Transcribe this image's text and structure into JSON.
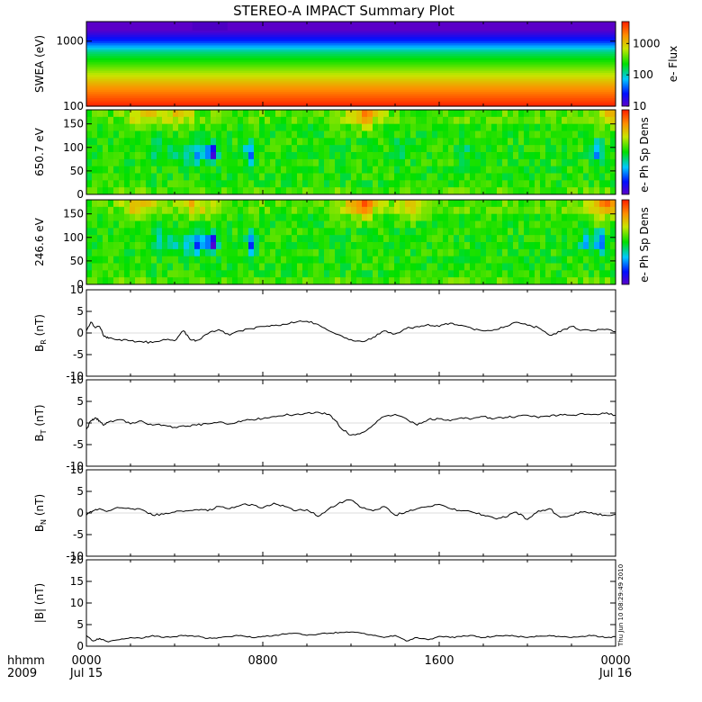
{
  "title": "STEREO-A IMPACT Summary Plot",
  "timestamp_label": "Thu Jun 10 08:29:49 2010",
  "x_axis": {
    "row1_label": "hhmm",
    "row2_label": "2009",
    "ticks": [
      {
        "hours": 0,
        "line1": "0000",
        "line2": "Jul 15"
      },
      {
        "hours": 8,
        "line1": "0800",
        "line2": ""
      },
      {
        "hours": 16,
        "line1": "1600",
        "line2": ""
      },
      {
        "hours": 24,
        "line1": "0000",
        "line2": "Jul 16"
      }
    ],
    "range_hours": [
      0,
      24
    ]
  },
  "colors": {
    "line": "#000000",
    "axis": "#000000",
    "background": "#ffffff"
  },
  "chart_data": [
    {
      "type": "heatmap",
      "name": "swea",
      "ylabel": "SWEA (eV)",
      "yscale": "log",
      "ylim": [
        100,
        2000
      ],
      "yticks": [
        100,
        1000
      ],
      "yticklabels": [
        "100",
        "1000"
      ],
      "colorbar": {
        "label": "e- Flux",
        "scale": "log",
        "range": [
          10,
          5000
        ],
        "ticks": [
          10,
          100,
          1000
        ],
        "ticklabels": [
          "10",
          "100",
          "1000"
        ]
      },
      "energy_profile": {
        "energy_ev": [
          100,
          200,
          400,
          700,
          1000,
          1500,
          2000
        ],
        "log_flux": [
          3.7,
          3.2,
          2.6,
          2.1,
          1.5,
          1.0,
          0.6
        ]
      }
    },
    {
      "type": "heatmap",
      "name": "pad650",
      "ylabel": "650.7 eV",
      "ylim": [
        0,
        180
      ],
      "yticks": [
        0,
        50,
        100,
        150
      ],
      "yticklabels": [
        "0",
        "50",
        "100",
        "150"
      ],
      "colorbar": {
        "label": "e- Ph Sp Dens"
      },
      "blue_spots": [
        {
          "t_hours": 5.7,
          "pitch_deg": 88,
          "strength": 0.95
        },
        {
          "t_hours": 5.1,
          "pitch_deg": 88,
          "strength": 0.55
        },
        {
          "t_hours": 4.6,
          "pitch_deg": 88,
          "strength": 0.4
        },
        {
          "t_hours": 3.9,
          "pitch_deg": 90,
          "strength": 0.35
        },
        {
          "t_hours": 3.2,
          "pitch_deg": 90,
          "strength": 0.3
        },
        {
          "t_hours": 7.4,
          "pitch_deg": 88,
          "strength": 0.6
        },
        {
          "t_hours": 17.1,
          "pitch_deg": 90,
          "strength": 0.25
        },
        {
          "t_hours": 23.2,
          "pitch_deg": 90,
          "strength": 0.6
        },
        {
          "t_hours": 14.2,
          "pitch_deg": 90,
          "strength": 0.2
        }
      ],
      "hot_regions": [
        {
          "t_hours": 2.6,
          "strength": 0.5
        },
        {
          "t_hours": 4.2,
          "strength": 0.4
        },
        {
          "t_hours": 12.6,
          "strength": 0.75
        },
        {
          "t_hours": 23.8,
          "strength": 0.6
        }
      ]
    },
    {
      "type": "heatmap",
      "name": "pad246",
      "ylabel": "246.6 eV",
      "ylim": [
        0,
        180
      ],
      "yticks": [
        0,
        50,
        100,
        150
      ],
      "yticklabels": [
        "0",
        "50",
        "100",
        "150"
      ],
      "colorbar": {
        "label": "e- Ph Sp Dens"
      },
      "blue_spots": [
        {
          "t_hours": 5.7,
          "pitch_deg": 88,
          "strength": 1.0
        },
        {
          "t_hours": 5.1,
          "pitch_deg": 88,
          "strength": 0.75
        },
        {
          "t_hours": 4.6,
          "pitch_deg": 88,
          "strength": 0.5
        },
        {
          "t_hours": 3.9,
          "pitch_deg": 88,
          "strength": 0.45
        },
        {
          "t_hours": 3.3,
          "pitch_deg": 88,
          "strength": 0.45
        },
        {
          "t_hours": 7.5,
          "pitch_deg": 88,
          "strength": 0.65
        },
        {
          "t_hours": 23.3,
          "pitch_deg": 90,
          "strength": 0.75
        },
        {
          "t_hours": 22.6,
          "pitch_deg": 90,
          "strength": 0.4
        }
      ],
      "hot_regions": [
        {
          "t_hours": 2.4,
          "strength": 0.6
        },
        {
          "t_hours": 5.0,
          "strength": 0.5
        },
        {
          "t_hours": 12.5,
          "strength": 0.95
        },
        {
          "t_hours": 14.8,
          "strength": 0.6
        },
        {
          "t_hours": 23.5,
          "strength": 0.95
        }
      ]
    },
    {
      "type": "line",
      "name": "br",
      "ylabel_main": "B",
      "ylabel_sub": "R",
      "ylabel_unit": " (nT)",
      "ylim": [
        -10,
        10
      ],
      "yticks": [
        -10,
        -5,
        0,
        5,
        10
      ],
      "yticklabels": [
        "-10",
        "-5",
        "0",
        "5",
        "10"
      ],
      "x_hours": [
        0,
        0.2,
        0.4,
        0.6,
        0.8,
        1,
        1.5,
        2,
        2.5,
        3,
        3.5,
        4,
        4.4,
        4.7,
        5,
        5.5,
        6,
        6.5,
        7,
        7.5,
        8,
        8.5,
        9,
        9.5,
        10,
        10.5,
        11,
        11.5,
        12,
        12.5,
        13,
        13.5,
        14,
        14.5,
        15,
        15.5,
        16,
        16.5,
        17,
        17.5,
        18,
        18.5,
        19,
        19.5,
        20,
        20.5,
        21,
        21.5,
        22,
        22.5,
        23,
        23.5,
        24
      ],
      "values": [
        0.5,
        2.5,
        1.2,
        1.5,
        -0.8,
        -1.2,
        -1.5,
        -1.8,
        -2.0,
        -2.2,
        -1.5,
        -1.8,
        0.5,
        -1.5,
        -1.7,
        -0.2,
        0.8,
        -0.5,
        0.5,
        1.0,
        1.5,
        1.7,
        2.0,
        2.5,
        2.7,
        2.0,
        0.5,
        -0.5,
        -1.5,
        -2.0,
        -1.0,
        0.5,
        -0.2,
        1.0,
        1.5,
        2.0,
        1.5,
        2.3,
        1.8,
        1.0,
        0.5,
        0.8,
        1.5,
        2.5,
        1.8,
        1.2,
        -0.5,
        0.3,
        1.5,
        0.7,
        0.5,
        0.8,
        0.3
      ]
    },
    {
      "type": "line",
      "name": "bt",
      "ylabel_main": "B",
      "ylabel_sub": "T",
      "ylabel_unit": " (nT)",
      "ylim": [
        -10,
        10
      ],
      "yticks": [
        -10,
        -5,
        0,
        5,
        10
      ],
      "yticklabels": [
        "-10",
        "-5",
        "0",
        "5",
        "10"
      ],
      "x_hours": [
        0,
        0.2,
        0.4,
        0.6,
        0.8,
        1,
        1.5,
        2,
        2.5,
        3,
        3.5,
        4,
        4.5,
        5,
        5.5,
        6,
        6.5,
        7,
        7.5,
        8,
        8.5,
        9,
        9.5,
        10,
        10.5,
        11,
        11.3,
        11.6,
        12,
        12.5,
        13,
        13.5,
        14,
        14.5,
        15,
        15.5,
        16,
        16.5,
        17,
        17.5,
        18,
        18.5,
        19,
        19.5,
        20,
        20.5,
        21,
        21.5,
        22,
        22.5,
        23,
        23.5,
        24
      ],
      "values": [
        -1.5,
        0.5,
        1.2,
        0.5,
        -0.5,
        0.2,
        0.8,
        -0.2,
        0.5,
        -0.5,
        -0.5,
        -1.0,
        -0.8,
        -0.5,
        -0.2,
        0.2,
        -0.2,
        0.3,
        0.8,
        1.0,
        1.5,
        1.8,
        2.0,
        2.3,
        2.5,
        2.0,
        0.5,
        -1.5,
        -2.8,
        -2.2,
        -0.5,
        1.5,
        2.0,
        1.0,
        -0.5,
        0.8,
        1.0,
        0.5,
        1.2,
        1.0,
        1.5,
        1.0,
        1.3,
        1.5,
        1.8,
        1.2,
        1.5,
        2.0,
        1.8,
        2.2,
        2.0,
        2.2,
        1.8
      ]
    },
    {
      "type": "line",
      "name": "bn",
      "ylabel_main": "B",
      "ylabel_sub": "N",
      "ylabel_unit": " (nT)",
      "ylim": [
        -10,
        10
      ],
      "yticks": [
        -10,
        -5,
        0,
        5,
        10
      ],
      "yticklabels": [
        "-10",
        "-5",
        "0",
        "5",
        "10"
      ],
      "x_hours": [
        0,
        0.3,
        0.6,
        1,
        1.5,
        2,
        2.5,
        3,
        3.5,
        4,
        4.5,
        5,
        5.5,
        6,
        6.5,
        7,
        7.5,
        8,
        8.5,
        9,
        9.5,
        10,
        10.5,
        11,
        11.5,
        12,
        12.5,
        13,
        13.5,
        14,
        14.5,
        15,
        15.5,
        16,
        16.5,
        17,
        17.5,
        18,
        18.5,
        19,
        19.5,
        20,
        20.5,
        21,
        21.5,
        22,
        22.5,
        23,
        23.5,
        24
      ],
      "values": [
        -0.5,
        0.5,
        1.0,
        0.5,
        1.2,
        1.0,
        0.8,
        -0.5,
        -0.3,
        0.2,
        0.5,
        0.8,
        0.5,
        1.5,
        1.0,
        1.8,
        2.0,
        1.2,
        2.3,
        1.5,
        0.5,
        0.8,
        -0.8,
        1.0,
        2.5,
        3.0,
        1.2,
        0.5,
        1.5,
        -0.5,
        0.3,
        1.0,
        1.5,
        2.0,
        1.0,
        0.5,
        0.2,
        -0.5,
        -1.2,
        -1.0,
        0.2,
        -1.5,
        0.5,
        1.0,
        -1.0,
        -0.5,
        0.2,
        -0.2,
        -0.5,
        -0.3
      ]
    },
    {
      "type": "line",
      "name": "bmag",
      "ylabel_main": "|B| (nT)",
      "ylim": [
        0,
        20
      ],
      "yticks": [
        0,
        5,
        10,
        15,
        20
      ],
      "yticklabels": [
        "0",
        "5",
        "10",
        "15",
        "20"
      ],
      "x_hours": [
        0,
        0.3,
        0.6,
        1,
        1.5,
        2,
        2.5,
        3,
        3.5,
        4,
        4.5,
        5,
        5.5,
        6,
        6.5,
        7,
        7.5,
        8,
        8.5,
        9,
        9.5,
        10,
        10.5,
        11,
        11.5,
        12,
        12.5,
        13,
        13.5,
        14,
        14.5,
        15,
        15.5,
        16,
        16.5,
        17,
        17.5,
        18,
        18.5,
        19,
        19.5,
        20,
        20.5,
        21,
        21.5,
        22,
        22.5,
        23,
        23.5,
        24
      ],
      "values": [
        2.5,
        1.2,
        1.8,
        1.0,
        1.5,
        2.0,
        1.8,
        2.5,
        2.0,
        2.2,
        2.5,
        2.3,
        1.8,
        2.0,
        2.2,
        2.5,
        2.0,
        2.3,
        2.5,
        2.8,
        3.0,
        2.5,
        2.8,
        3.0,
        3.2,
        3.3,
        3.0,
        2.5,
        2.0,
        2.5,
        1.2,
        2.0,
        1.5,
        2.3,
        2.0,
        2.2,
        2.5,
        2.0,
        2.3,
        2.5,
        2.3,
        2.0,
        2.3,
        2.5,
        2.2,
        2.0,
        2.3,
        2.5,
        2.0,
        2.2
      ]
    }
  ]
}
